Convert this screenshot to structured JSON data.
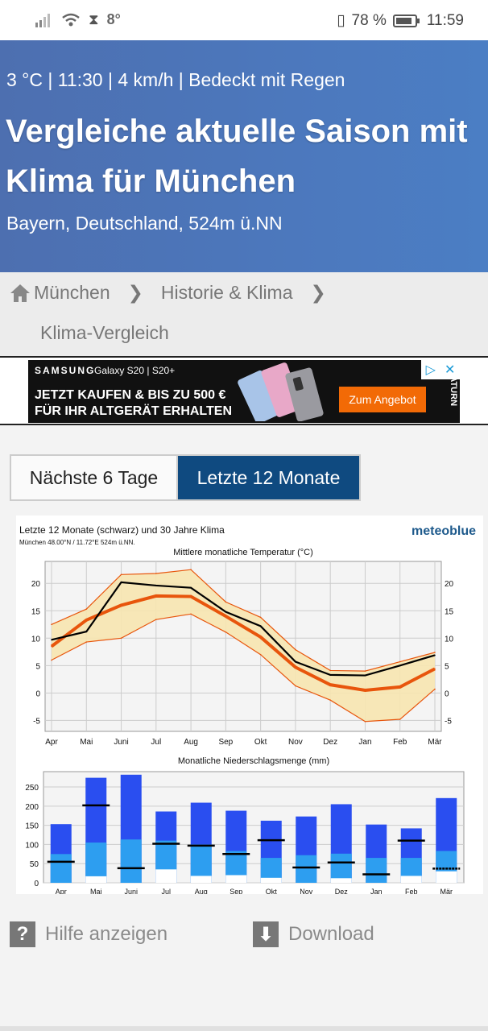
{
  "status_bar": {
    "left_text": "8°",
    "battery": "78 %",
    "time": "11:59"
  },
  "header": {
    "current": "3 °C | 11:30 | 4 km/h | Bedeckt mit Regen",
    "title": "Vergleiche aktuelle Saison mit Klima für München",
    "location": "Bayern, Deutschland, 524m ü.NN"
  },
  "breadcrumb": {
    "home": "München",
    "sep": "❯",
    "level2": "Historie & Klima",
    "level3": "Klima-Vergleich"
  },
  "ad": {
    "brand": "SAMSUNG",
    "model": "Galaxy S20 | S20+",
    "line1": "JETZT KAUFEN & BIS ZU 500 €",
    "line2": "FÜR IHR ALTGERÄT ERHALTEN",
    "cta": "Zum Angebot",
    "retailer": "SATURN"
  },
  "tabs": {
    "next": "Nächste 6 Tage",
    "last": "Letzte 12 Monate"
  },
  "chart_header": {
    "title": "Letzte 12 Monate (schwarz) und 30 Jahre Klima",
    "sub": "München 48.00°N / 11.72°E   524m ü.NN.",
    "logo": "meteoblue"
  },
  "chart_data": [
    {
      "type": "line",
      "title": "Mittlere monatliche Temperatur (°C)",
      "categories": [
        "Apr",
        "Mai",
        "Juni",
        "Jul",
        "Aug",
        "Sep",
        "Okt",
        "Nov",
        "Dez",
        "Jan",
        "Feb",
        "Mär"
      ],
      "ylim": [
        -7,
        24
      ],
      "yticks": [
        -5,
        0,
        5,
        10,
        15,
        20
      ],
      "series": [
        {
          "values": [
            9.7,
            11.2,
            20.2,
            19.6,
            19.2,
            14.8,
            12.2,
            5.7,
            3.3,
            3.2,
            5.0,
            6.9
          ],
          "color": "#000000"
        },
        {
          "values": [
            8.5,
            13.3,
            16.0,
            17.7,
            17.6,
            14.0,
            10.2,
            4.7,
            1.5,
            0.5,
            1.1,
            4.4
          ],
          "color": "#e8550c"
        },
        {
          "values": [
            12.5,
            15.3,
            21.6,
            21.8,
            22.5,
            16.6,
            13.8,
            7.9,
            4.1,
            4.0,
            5.7,
            7.4
          ],
          "color": "#e8550c"
        },
        {
          "values": [
            6.0,
            9.3,
            10.0,
            13.4,
            14.4,
            11.1,
            7.0,
            1.3,
            -1.3,
            -5.2,
            -4.8,
            0.7
          ],
          "color": "#e8550c"
        }
      ]
    },
    {
      "type": "bar",
      "title": "Monatliche Niederschlagsmenge (mm)",
      "categories": [
        "Apr",
        "Mai",
        "Juni",
        "Jul",
        "Aug",
        "Sep",
        "Okt",
        "Nov",
        "Dez",
        "Jan",
        "Feb",
        "Mär"
      ],
      "ylim": [
        0,
        290
      ],
      "yticks": [
        0,
        50,
        100,
        150,
        200,
        250
      ],
      "series": [
        {
          "values": [
            153,
            274,
            282,
            186,
            209,
            188,
            162,
            173,
            205,
            152,
            142,
            221
          ],
          "color": "#2a4ef0"
        },
        {
          "values": [
            75,
            105,
            113,
            110,
            100,
            83,
            65,
            72,
            76,
            65,
            65,
            83
          ],
          "color": "#2d9ef0"
        },
        {
          "values": [
            0,
            17,
            0,
            35,
            18,
            20,
            13,
            0,
            12,
            0,
            18,
            30
          ],
          "color": "#ffffff"
        },
        {
          "values": [
            55,
            202,
            38,
            102,
            97,
            75,
            111,
            40,
            53,
            22,
            110,
            37
          ],
          "color": "#000000"
        }
      ]
    }
  ],
  "footer": {
    "help": "Hilfe anzeigen",
    "download": "Download"
  }
}
